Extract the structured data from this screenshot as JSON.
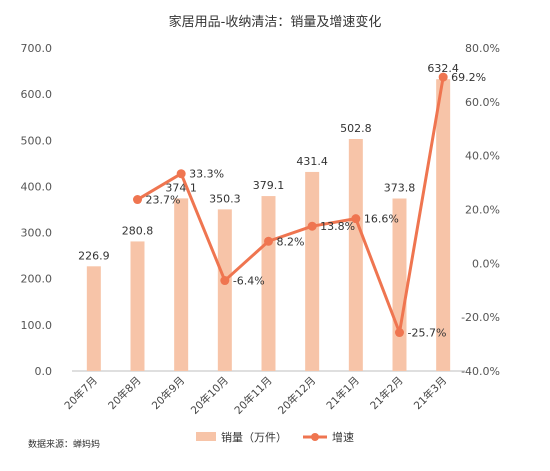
{
  "chart_data": {
    "type": "bar",
    "title": "家居用品-收纳清洁：销量及增速变化",
    "categories": [
      "20年7月",
      "20年8月",
      "20年9月",
      "20年10月",
      "20年11月",
      "20年12月",
      "21年1月",
      "21年2月",
      "21年3月"
    ],
    "series": [
      {
        "name": "销量（万件）",
        "type": "bar",
        "axis": "left",
        "values": [
          226.9,
          280.8,
          374.1,
          350.3,
          379.1,
          431.4,
          502.8,
          373.8,
          632.4
        ],
        "labels": [
          "226.9",
          "280.8",
          "374.1",
          "350.3",
          "379.1",
          "431.4",
          "502.8",
          "373.8",
          "632.4"
        ],
        "color": "#f7c4a8"
      },
      {
        "name": "增速",
        "type": "line",
        "axis": "right",
        "values": [
          null,
          23.7,
          33.3,
          -6.4,
          8.2,
          13.8,
          16.6,
          -25.7,
          69.2
        ],
        "labels": [
          "",
          "23.7%",
          "33.3%",
          "-6.4%",
          "8.2%",
          "13.8%",
          "16.6%",
          "-25.7%",
          "69.2%"
        ],
        "color": "#ef7550"
      }
    ],
    "y_left": {
      "range": [
        0,
        700
      ],
      "ticks": [
        0,
        100,
        200,
        300,
        400,
        500,
        600,
        700
      ],
      "tick_labels": [
        "0.0",
        "100.0",
        "200.0",
        "300.0",
        "400.0",
        "500.0",
        "600.0",
        "700.0"
      ]
    },
    "y_right": {
      "range": [
        -40,
        80
      ],
      "ticks": [
        -40,
        -20,
        0,
        20,
        40,
        60,
        80
      ],
      "tick_labels": [
        "-40.0%",
        "-20.0%",
        "0.0%",
        "20.0%",
        "40.0%",
        "60.0%",
        "80.0%"
      ]
    },
    "grid": false,
    "legend_position": "bottom",
    "source": "数据来源：蝉妈妈"
  }
}
